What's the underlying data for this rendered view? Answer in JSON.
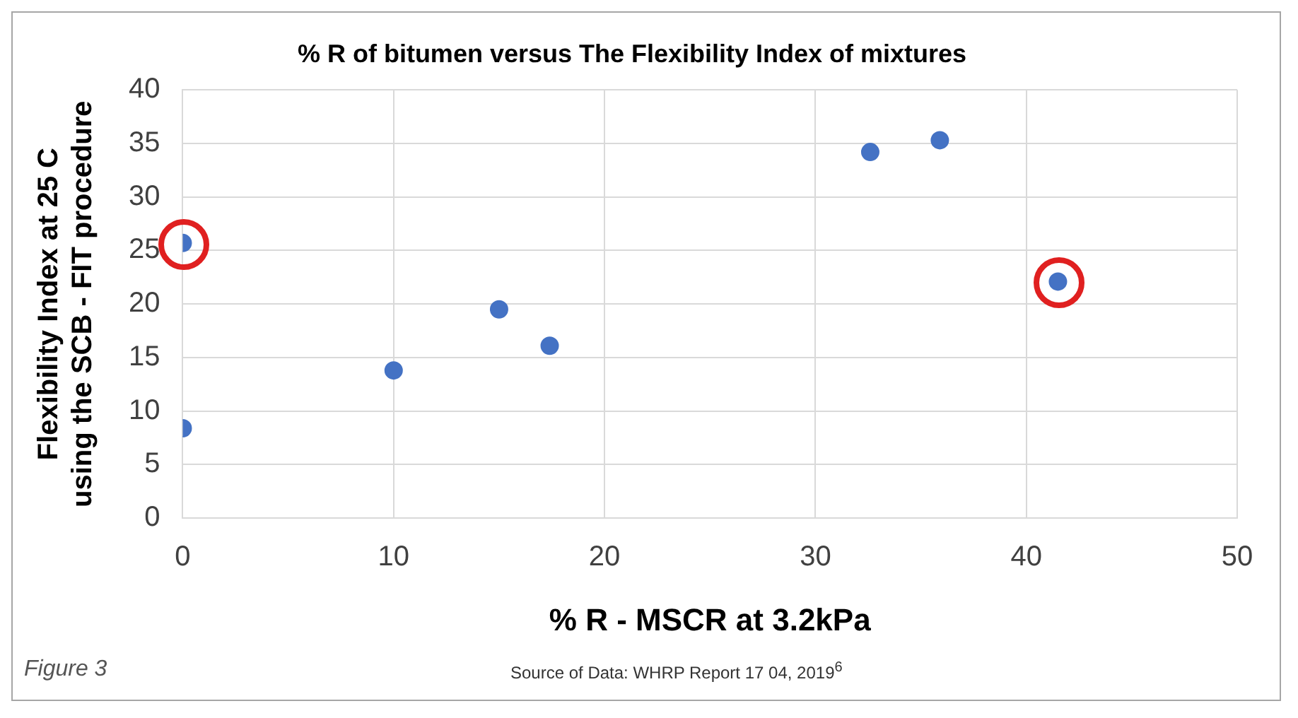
{
  "chart_data": {
    "type": "scatter",
    "title": "% R of bitumen versus The Flexibility Index of mixtures",
    "xlabel": "% R - MSCR at 3.2kPa",
    "ylabel": "Flexibility Index at 25 C using the SCB - FIT procedure",
    "series": [
      {
        "color": "#4472c4",
        "x": [
          0,
          0,
          10,
          15,
          17.4,
          32.6,
          35.9,
          41.5
        ],
        "values": [
          25.7,
          8.4,
          13.8,
          19.5,
          16.1,
          34.2,
          35.3,
          22.1
        ]
      }
    ],
    "xlim": [
      0,
      50
    ],
    "xticks": [
      0,
      10,
      20,
      30,
      40,
      50
    ],
    "ylim": [
      0,
      40
    ],
    "yticks": [
      0,
      5,
      10,
      15,
      20,
      25,
      30,
      35,
      40
    ],
    "grid": true,
    "legend": false,
    "marker": "circle",
    "annotations": [
      "Figure 3",
      "Source of Data: WHRP Report 17 04, 2019$^{6}$"
    ]
  }
}
